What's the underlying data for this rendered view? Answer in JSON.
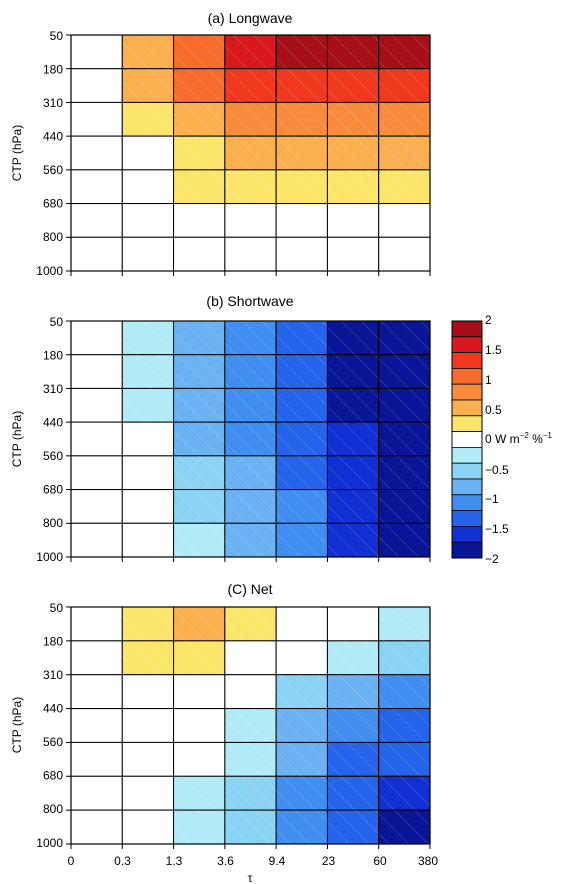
{
  "chart_data": [
    {
      "type": "heatmap",
      "title": "(a) Longwave",
      "xlabel": "",
      "ylabel": "CTP (hPa)",
      "x_tick_labels": [],
      "y_tick_labels": [
        "50",
        "180",
        "310",
        "440",
        "560",
        "680",
        "800",
        "1000"
      ],
      "x_bin_edges": [
        "0",
        "0.3",
        "1.3",
        "3.6",
        "9.4",
        "23",
        "60",
        "380"
      ],
      "rows": [
        "50-180",
        "180-310",
        "310-440",
        "440-560",
        "560-680",
        "680-800",
        "800-1000"
      ],
      "columns": [
        "0-0.3",
        "0.3-1.3",
        "1.3-3.6",
        "3.6-9.4",
        "9.4-23",
        "23-60",
        "60-380"
      ],
      "units": "W m^-2 %^-1",
      "values": [
        [
          0,
          0.75,
          1.25,
          1.75,
          2.0,
          2.0,
          2.0
        ],
        [
          0,
          0.75,
          1.25,
          1.5,
          1.5,
          1.5,
          1.5
        ],
        [
          0,
          0.5,
          0.75,
          1.0,
          1.0,
          1.0,
          1.0
        ],
        [
          0,
          0,
          0.5,
          0.75,
          0.75,
          0.75,
          0.75
        ],
        [
          0,
          0,
          0.5,
          0.5,
          0.5,
          0.5,
          0.5
        ],
        [
          0,
          0,
          0,
          0,
          0,
          0,
          0
        ],
        [
          0,
          0,
          0,
          0,
          0,
          0,
          0
        ]
      ]
    },
    {
      "type": "heatmap",
      "title": "(b) Shortwave",
      "xlabel": "",
      "ylabel": "CTP (hPa)",
      "x_tick_labels": [],
      "y_tick_labels": [
        "50",
        "180",
        "310",
        "440",
        "560",
        "680",
        "800",
        "1000"
      ],
      "x_bin_edges": [
        "0",
        "0.3",
        "1.3",
        "3.6",
        "9.4",
        "23",
        "60",
        "380"
      ],
      "rows": [
        "50-180",
        "180-310",
        "310-440",
        "440-560",
        "560-680",
        "680-800",
        "800-1000"
      ],
      "columns": [
        "0-0.3",
        "0.3-1.3",
        "1.3-3.6",
        "3.6-9.4",
        "9.4-23",
        "23-60",
        "60-380"
      ],
      "units": "W m^-2 %^-1",
      "values": [
        [
          0,
          -0.5,
          -1.0,
          -1.25,
          -1.5,
          -2.0,
          -2.0
        ],
        [
          0,
          -0.5,
          -1.0,
          -1.25,
          -1.5,
          -2.0,
          -2.0
        ],
        [
          0,
          -0.5,
          -1.0,
          -1.25,
          -1.5,
          -2.0,
          -2.0
        ],
        [
          0,
          0,
          -1.0,
          -1.25,
          -1.5,
          -1.75,
          -2.0
        ],
        [
          0,
          0,
          -0.75,
          -1.0,
          -1.5,
          -1.75,
          -2.0
        ],
        [
          0,
          0,
          -0.75,
          -1.0,
          -1.25,
          -1.75,
          -2.0
        ],
        [
          0,
          0,
          -0.5,
          -1.0,
          -1.25,
          -1.75,
          -2.0
        ]
      ]
    },
    {
      "type": "heatmap",
      "title": "(C) Net",
      "xlabel": "τ",
      "ylabel": "CTP (hPa)",
      "x_tick_labels": [
        "0",
        "0.3",
        "1.3",
        "3.6",
        "9.4",
        "23",
        "60",
        "380"
      ],
      "y_tick_labels": [
        "50",
        "180",
        "310",
        "440",
        "560",
        "680",
        "800",
        "1000"
      ],
      "x_bin_edges": [
        "0",
        "0.3",
        "1.3",
        "3.6",
        "9.4",
        "23",
        "60",
        "380"
      ],
      "rows": [
        "50-180",
        "180-310",
        "310-440",
        "440-560",
        "560-680",
        "680-800",
        "800-1000"
      ],
      "columns": [
        "0-0.3",
        "0.3-1.3",
        "1.3-3.6",
        "3.6-9.4",
        "9.4-23",
        "23-60",
        "60-380"
      ],
      "units": "W m^-2 %^-1",
      "values": [
        [
          0,
          0.5,
          0.75,
          0.5,
          0,
          0,
          -0.5
        ],
        [
          0,
          0.5,
          0.5,
          0,
          0,
          -0.5,
          -0.75
        ],
        [
          0,
          0,
          0,
          0,
          -0.75,
          -1.0,
          -1.25
        ],
        [
          0,
          0,
          0,
          -0.5,
          -1.0,
          -1.25,
          -1.5
        ],
        [
          0,
          0,
          0,
          -0.5,
          -1.0,
          -1.5,
          -1.5
        ],
        [
          0,
          0,
          -0.5,
          -0.75,
          -1.25,
          -1.5,
          -1.75
        ],
        [
          0,
          0,
          -0.5,
          -0.75,
          -1.25,
          -1.5,
          -2.0
        ]
      ]
    }
  ],
  "colorbar": {
    "levels": [
      {
        "value": 2.0,
        "color": "#a50f15"
      },
      {
        "value": 1.75,
        "color": "#d7191c"
      },
      {
        "value": 1.5,
        "color": "#f0381f"
      },
      {
        "value": 1.25,
        "color": "#f86b2c"
      },
      {
        "value": 1.0,
        "color": "#f98c3c"
      },
      {
        "value": 0.75,
        "color": "#fbb050"
      },
      {
        "value": 0.5,
        "color": "#fde56a"
      },
      {
        "value": 0,
        "color": "#ffffff"
      },
      {
        "value": -0.5,
        "color": "#b2ebf8"
      },
      {
        "value": -0.75,
        "color": "#8bd3f5"
      },
      {
        "value": -1.0,
        "color": "#6ab2f1"
      },
      {
        "value": -1.25,
        "color": "#3f8ef0"
      },
      {
        "value": -1.5,
        "color": "#2563ea"
      },
      {
        "value": -1.75,
        "color": "#1030d4"
      },
      {
        "value": -2.0,
        "color": "#0a1497"
      }
    ],
    "tick_labels": [
      "2",
      "1.5",
      "1",
      "0.5",
      "0 W m",
      "−0.5",
      "−1",
      "−1.5",
      "−2"
    ],
    "unit_exp1": "−2",
    "unit_mid": " %",
    "unit_exp2": "−1"
  }
}
